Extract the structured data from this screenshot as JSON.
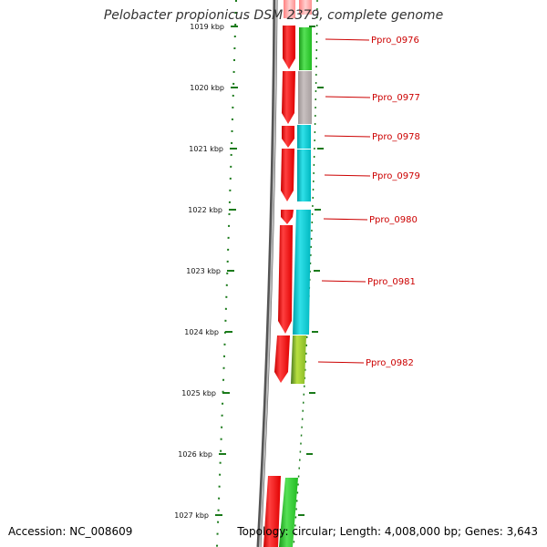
{
  "title": "Pelobacter propionicus DSM 2379, complete genome",
  "footer": {
    "accession": "Accession: NC_008609",
    "summary": "Topology: circular; Length: 4,008,000 bp; Genes: 3,643"
  },
  "colors": {
    "red_gene": "#ff0000",
    "green_gene": "#22cc22",
    "gray_gene": "#b0a8a8",
    "cyan_gene": "#00c8d0",
    "olive_gene": "#9acd32",
    "tick_green": "#1a7a1a",
    "label_red": "#cc0000",
    "backbone": "#888888"
  },
  "ticks": [
    {
      "kbp": 1019,
      "label": "1019 kbp"
    },
    {
      "kbp": 1020,
      "label": "1020 kbp"
    },
    {
      "kbp": 1021,
      "label": "1021 kbp"
    },
    {
      "kbp": 1022,
      "label": "1022 kbp"
    },
    {
      "kbp": 1023,
      "label": "1023 kbp"
    },
    {
      "kbp": 1024,
      "label": "1024 kbp"
    },
    {
      "kbp": 1025,
      "label": "1025 kbp"
    },
    {
      "kbp": 1026,
      "label": "1026 kbp"
    },
    {
      "kbp": 1027,
      "label": "1027 kbp"
    }
  ],
  "genes": [
    {
      "name": "Ppro_0976"
    },
    {
      "name": "Ppro_0977"
    },
    {
      "name": "Ppro_0978"
    },
    {
      "name": "Ppro_0979"
    },
    {
      "name": "Ppro_0980"
    },
    {
      "name": "Ppro_0981"
    },
    {
      "name": "Ppro_0982"
    }
  ]
}
